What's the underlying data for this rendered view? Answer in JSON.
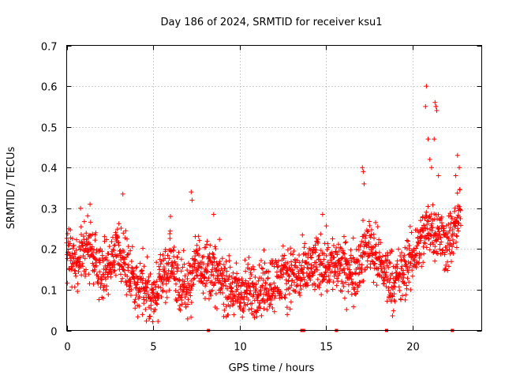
{
  "chart_data": {
    "type": "scatter",
    "title": "Day 186 of 2024, SRMTID for receiver ksu1",
    "xlabel": "GPS time / hours",
    "ylabel": "SRMTID / TECUs",
    "xlim": [
      0,
      24
    ],
    "ylim": [
      0,
      0.7
    ],
    "xticks": [
      "0",
      "5",
      "10",
      "15",
      "20"
    ],
    "yticks": [
      "0",
      "0.1",
      "0.2",
      "0.3",
      "0.4",
      "0.5",
      "0.6",
      "0.7"
    ],
    "grid": true,
    "marker": "+",
    "color": "#ff0000",
    "series": [
      {
        "name": "SRMTID",
        "trend": {
          "x": [
            0,
            0.5,
            1,
            1.5,
            2,
            2.5,
            3,
            3.5,
            4,
            4.5,
            5,
            5.5,
            6,
            6.5,
            7,
            7.5,
            8,
            8.5,
            9,
            9.5,
            10,
            10.5,
            11,
            11.5,
            12,
            12.5,
            13,
            13.5,
            14,
            14.5,
            15,
            15.5,
            16,
            16.5,
            17,
            17.5,
            18,
            18.5,
            19,
            19.5,
            20,
            20.5,
            21,
            21.5,
            22,
            22.5,
            22.8
          ],
          "y": [
            0.19,
            0.17,
            0.2,
            0.18,
            0.15,
            0.17,
            0.2,
            0.15,
            0.12,
            0.1,
            0.07,
            0.13,
            0.16,
            0.12,
            0.1,
            0.17,
            0.16,
            0.14,
            0.12,
            0.1,
            0.09,
            0.1,
            0.1,
            0.11,
            0.12,
            0.13,
            0.14,
            0.13,
            0.15,
            0.16,
            0.17,
            0.16,
            0.15,
            0.14,
            0.17,
            0.22,
            0.17,
            0.14,
            0.12,
            0.14,
            0.18,
            0.22,
            0.26,
            0.24,
            0.21,
            0.25,
            0.3
          ]
        },
        "spread": 0.035,
        "spikes": [
          [
            0.8,
            0.3
          ],
          [
            1.35,
            0.31
          ],
          [
            3.25,
            0.335
          ],
          [
            6.0,
            0.28
          ],
          [
            7.2,
            0.34
          ],
          [
            7.25,
            0.32
          ],
          [
            8.5,
            0.285
          ],
          [
            14.8,
            0.285
          ],
          [
            17.1,
            0.4
          ],
          [
            17.15,
            0.39
          ],
          [
            17.2,
            0.36
          ],
          [
            20.8,
            0.6
          ],
          [
            20.75,
            0.55
          ],
          [
            20.9,
            0.47
          ],
          [
            21.0,
            0.42
          ],
          [
            21.1,
            0.4
          ],
          [
            21.3,
            0.56
          ],
          [
            21.35,
            0.55
          ],
          [
            21.4,
            0.54
          ],
          [
            21.25,
            0.47
          ],
          [
            21.5,
            0.38
          ],
          [
            22.6,
            0.43
          ],
          [
            22.7,
            0.4
          ],
          [
            22.5,
            0.38
          ]
        ],
        "zero_marks": [
          8.2,
          13.6,
          13.7,
          15.6,
          18.5,
          22.3
        ]
      }
    ]
  }
}
